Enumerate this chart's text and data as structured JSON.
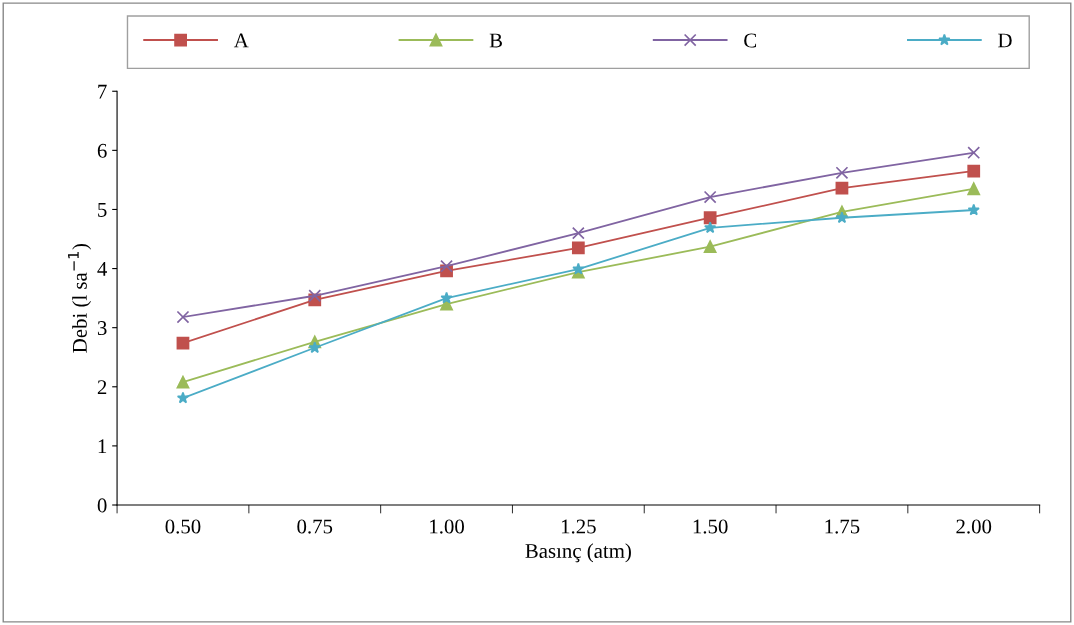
{
  "chart_data": {
    "type": "line",
    "xlabel": "Basınç (atm)",
    "ylabel": "Debi (l sa$^{−1}$)",
    "categories": [
      "0.50",
      "0.75",
      "1.00",
      "1.25",
      "1.50",
      "1.75",
      "2.00"
    ],
    "series": [
      {
        "name": "A",
        "color": "#c0504d",
        "marker": "square",
        "values": [
          2.74,
          3.47,
          3.96,
          4.35,
          4.86,
          5.36,
          5.65
        ]
      },
      {
        "name": "B",
        "color": "#9bbb59",
        "marker": "triangle",
        "values": [
          2.08,
          2.76,
          3.4,
          3.94,
          4.37,
          4.96,
          5.35
        ]
      },
      {
        "name": "C",
        "color": "#8064a2",
        "marker": "cross",
        "values": [
          3.18,
          3.54,
          4.04,
          4.6,
          5.21,
          5.62,
          5.96
        ]
      },
      {
        "name": "D",
        "color": "#4bacc6",
        "marker": "star",
        "values": [
          1.81,
          2.66,
          3.5,
          3.99,
          4.69,
          4.86,
          4.99
        ]
      }
    ],
    "ylim": [
      0,
      7
    ],
    "yticks": [
      0,
      1,
      2,
      3,
      4,
      5,
      6,
      7
    ],
    "grid": false,
    "legend": "top",
    "line_style": "solid"
  }
}
